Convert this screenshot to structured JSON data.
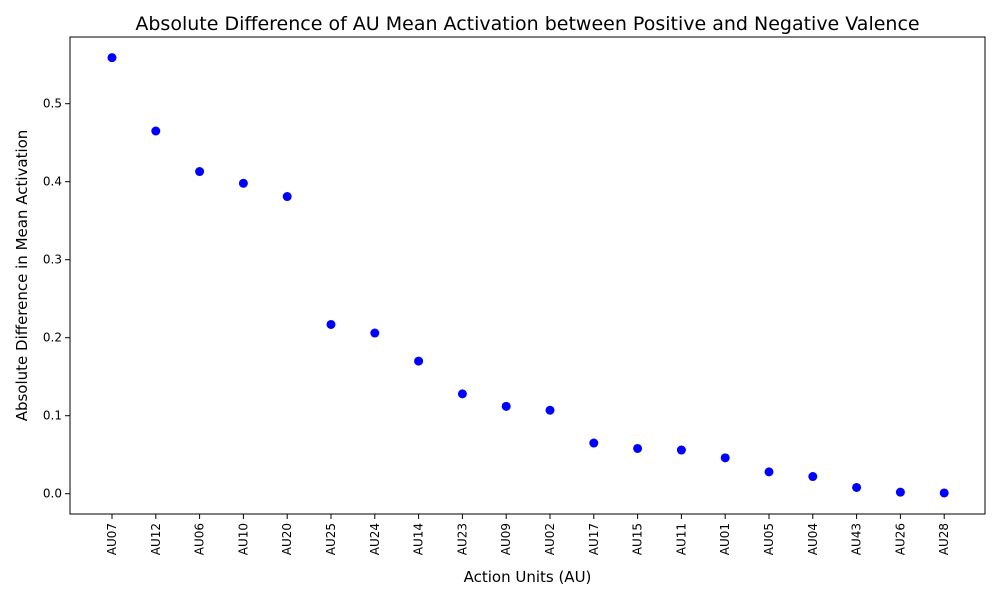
{
  "chart_data": {
    "type": "scatter",
    "title": "Absolute Difference of AU Mean Activation between Positive and Negative Valence",
    "xlabel": "Action Units (AU)",
    "ylabel": "Absolute Difference in Mean Activation",
    "categories": [
      "AU07",
      "AU12",
      "AU06",
      "AU10",
      "AU20",
      "AU25",
      "AU24",
      "AU14",
      "AU23",
      "AU09",
      "AU02",
      "AU17",
      "AU15",
      "AU11",
      "AU01",
      "AU05",
      "AU04",
      "AU43",
      "AU26",
      "AU28"
    ],
    "values": [
      0.559,
      0.465,
      0.413,
      0.398,
      0.381,
      0.217,
      0.206,
      0.17,
      0.128,
      0.112,
      0.107,
      0.065,
      0.058,
      0.056,
      0.046,
      0.028,
      0.022,
      0.008,
      0.002,
      0.001
    ],
    "ylim": [
      -0.026,
      0.5855
    ],
    "yticks": [
      "0.0",
      "0.1",
      "0.2",
      "0.3",
      "0.4",
      "0.5"
    ],
    "marker_color": "#0000ff",
    "grid": false
  }
}
